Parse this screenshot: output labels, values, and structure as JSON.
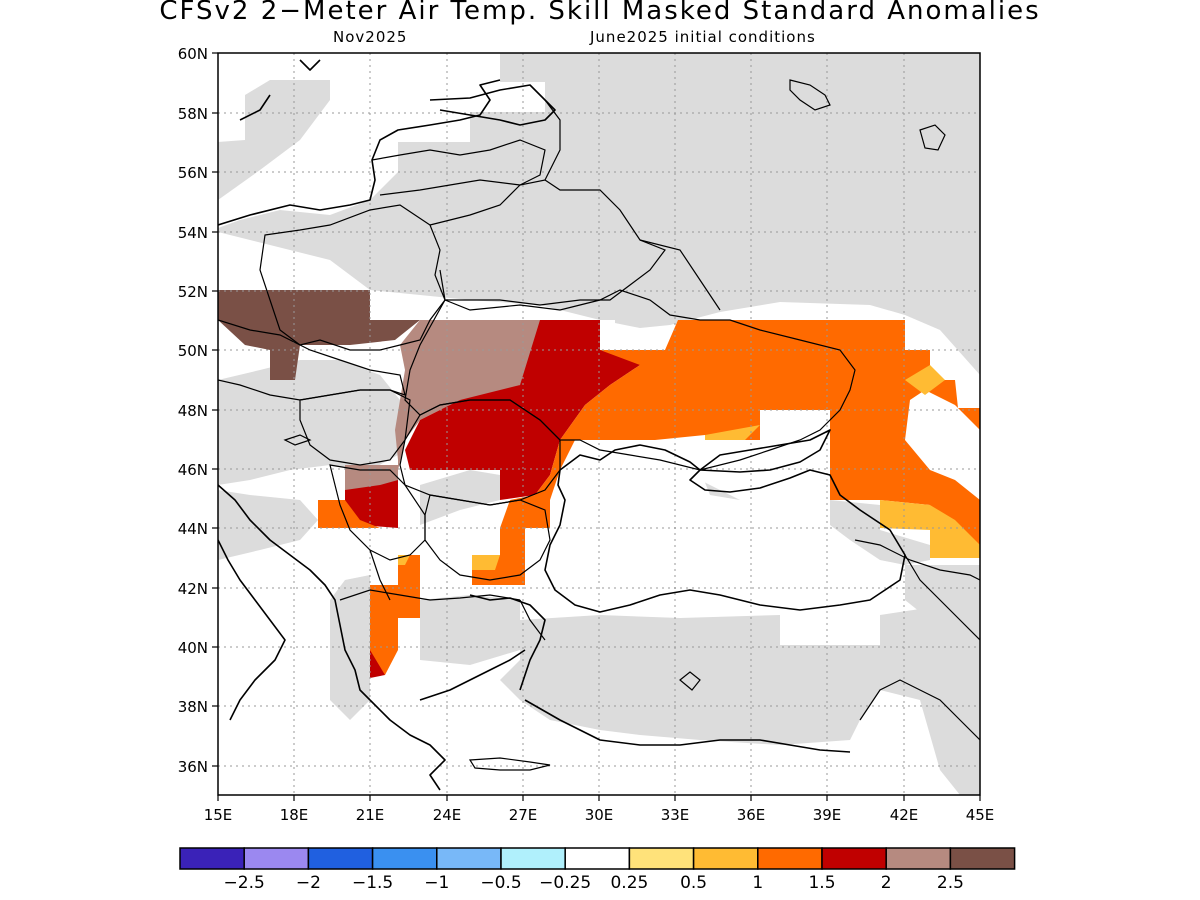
{
  "title": "CFSv2 2−Meter Air Temp. Skill Masked Standard Anomalies",
  "valid_label": "Nov2025",
  "init_label": "June2025 initial conditions",
  "map": {
    "lon_range": [
      15,
      45
    ],
    "lat_range": [
      35,
      60
    ],
    "lon_ticks": [
      "15E",
      "18E",
      "21E",
      "24E",
      "27E",
      "30E",
      "33E",
      "36E",
      "39E",
      "42E",
      "45E"
    ],
    "lat_ticks": [
      "60N",
      "58N",
      "56N",
      "54N",
      "52N",
      "50N",
      "48N",
      "46N",
      "44N",
      "42N",
      "40N",
      "38N",
      "36N"
    ],
    "grid": true,
    "masked_color": "#dcdcdc",
    "region": "Eastern Europe / Black Sea"
  },
  "colorbar": {
    "colors": [
      "#3a22b8",
      "#9b88f0",
      "#2060e0",
      "#3a90f0",
      "#78b8f8",
      "#b0f0fc",
      "#ffffff",
      "#ffe27a",
      "#ffbb33",
      "#ff6a00",
      "#c00000",
      "#b68a80",
      "#7a5046"
    ],
    "labels": [
      "−2.5",
      "−2",
      "−1.5",
      "−1",
      "−0.5",
      "−0.25",
      "0.25",
      "0.5",
      "1",
      "1.5",
      "2",
      "2.5"
    ]
  }
}
